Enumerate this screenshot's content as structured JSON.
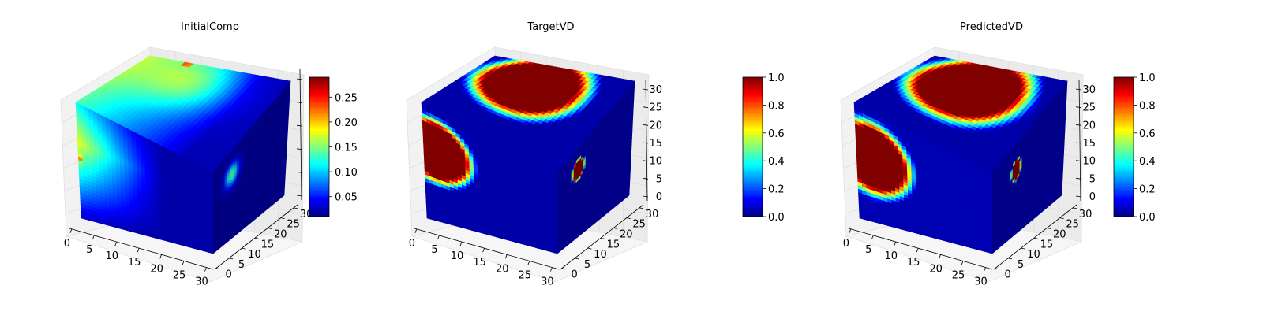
{
  "chart_data": [
    {
      "type": "heatmap",
      "subtype": "3d-voxel",
      "title": "InitialComp",
      "x_ticks": [
        "0",
        "5",
        "10",
        "15",
        "20",
        "25",
        "30"
      ],
      "y_ticks": [
        "0",
        "5",
        "10",
        "15",
        "20",
        "25",
        "30"
      ],
      "z_ticks": [],
      "colormap": "jet",
      "colorbar": {
        "range": [
          0.01,
          0.29
        ],
        "ticks": [
          "0.05",
          "0.10",
          "0.15",
          "0.20",
          "0.25"
        ]
      }
    },
    {
      "type": "heatmap",
      "subtype": "3d-voxel",
      "title": "TargetVD",
      "x_ticks": [
        "0",
        "5",
        "10",
        "15",
        "20",
        "25",
        "30"
      ],
      "y_ticks": [
        "0",
        "5",
        "10",
        "15",
        "20",
        "25",
        "30"
      ],
      "z_ticks": [
        "0",
        "5",
        "10",
        "15",
        "20",
        "25",
        "30"
      ],
      "colormap": "jet",
      "colorbar": {
        "range": [
          0.0,
          1.0
        ],
        "ticks": [
          "0.0",
          "0.2",
          "0.4",
          "0.6",
          "0.8",
          "1.0"
        ]
      }
    },
    {
      "type": "heatmap",
      "subtype": "3d-voxel",
      "title": "PredictedVD",
      "x_ticks": [
        "0",
        "5",
        "10",
        "15",
        "20",
        "25",
        "30"
      ],
      "y_ticks": [
        "0",
        "5",
        "10",
        "15",
        "20",
        "25",
        "30"
      ],
      "z_ticks": [
        "0",
        "5",
        "10",
        "15",
        "20",
        "25",
        "30"
      ],
      "colormap": "jet",
      "colorbar": {
        "range": [
          0.0,
          1.0
        ],
        "ticks": [
          "0.0",
          "0.2",
          "0.4",
          "0.6",
          "0.8",
          "1.0"
        ]
      }
    }
  ]
}
